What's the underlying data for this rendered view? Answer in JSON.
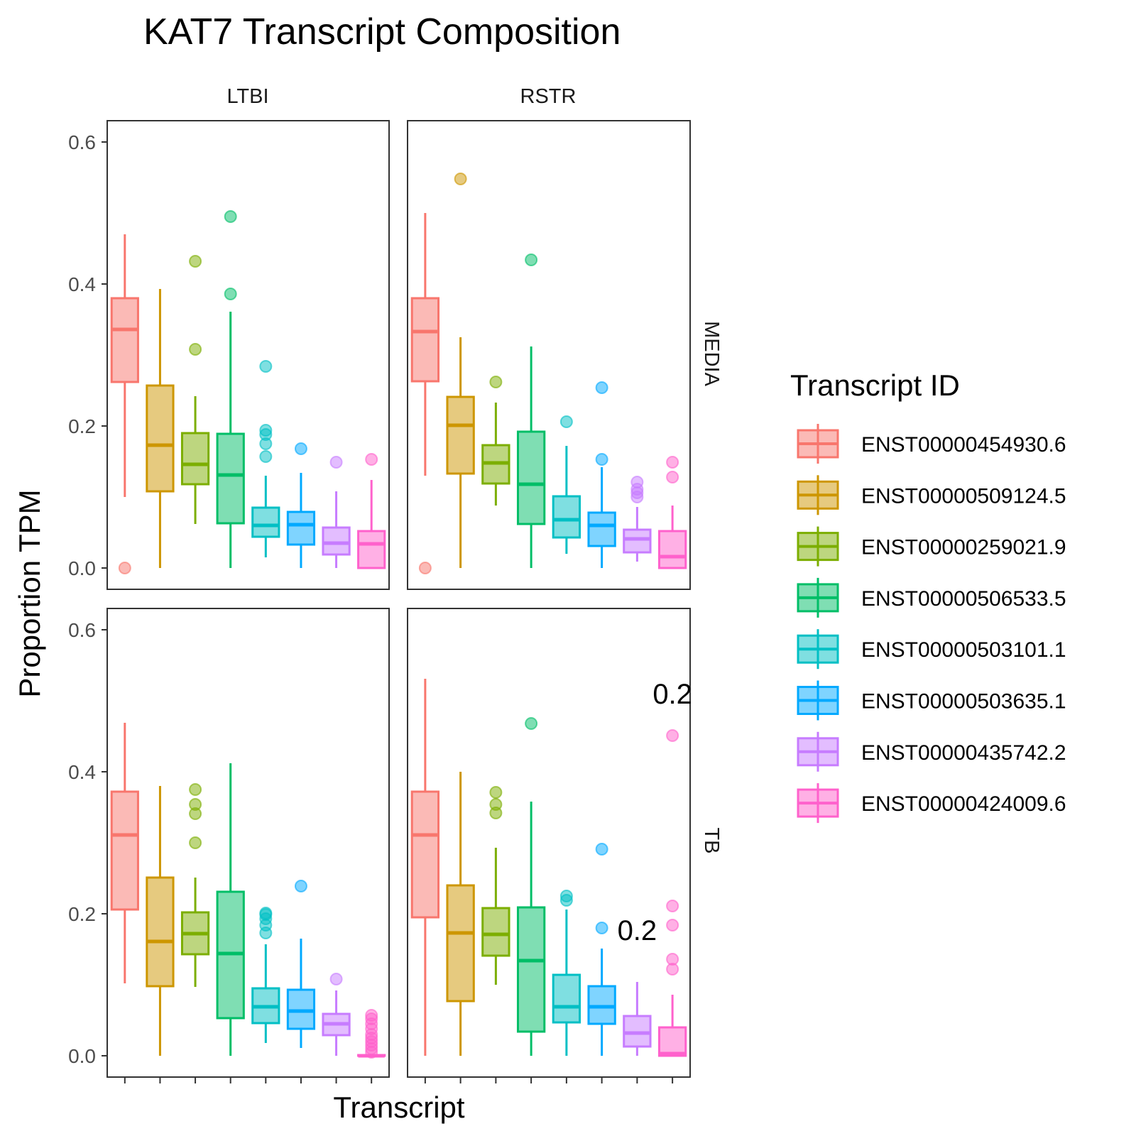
{
  "chart_data": {
    "type": "boxplot",
    "title": "KAT7 Transcript Composition",
    "xlabel": "Transcript",
    "ylabel": "Proportion TPM",
    "ylim": [
      -0.03,
      0.63
    ],
    "yticks": [
      "0.0",
      "0.2",
      "0.4",
      "0.6"
    ],
    "grid": false,
    "legend": {
      "title": "Transcript ID",
      "position": "right"
    },
    "col_facets": [
      "LTBI",
      "RSTR"
    ],
    "row_facets": [
      "MEDIA",
      "TB"
    ],
    "series": [
      {
        "name": "ENST00000454930.6",
        "color": "#F8766D"
      },
      {
        "name": "ENST00000509124.5",
        "color": "#CD9600"
      },
      {
        "name": "ENST00000259021.9",
        "color": "#7CAE00"
      },
      {
        "name": "ENST00000506533.5",
        "color": "#00BE67"
      },
      {
        "name": "ENST00000503101.1",
        "color": "#00BFC4"
      },
      {
        "name": "ENST00000503635.1",
        "color": "#00A9FF"
      },
      {
        "name": "ENST00000435742.2",
        "color": "#C77CFF"
      },
      {
        "name": "ENST00000424009.6",
        "color": "#FF61CC"
      }
    ],
    "panels": [
      {
        "col": "LTBI",
        "row": "MEDIA",
        "boxes": [
          {
            "lw": 0.1,
            "q1": 0.262,
            "med": 0.336,
            "q3": 0.38,
            "uw": 0.47,
            "out": [
              0.0
            ]
          },
          {
            "lw": 0.0,
            "q1": 0.108,
            "med": 0.173,
            "q3": 0.257,
            "uw": 0.393,
            "out": []
          },
          {
            "lw": 0.062,
            "q1": 0.118,
            "med": 0.146,
            "q3": 0.19,
            "uw": 0.242,
            "out": [
              0.308,
              0.432
            ]
          },
          {
            "lw": 0.0,
            "q1": 0.063,
            "med": 0.131,
            "q3": 0.189,
            "uw": 0.361,
            "out": [
              0.386,
              0.495
            ]
          },
          {
            "lw": 0.015,
            "q1": 0.044,
            "med": 0.06,
            "q3": 0.085,
            "uw": 0.13,
            "out": [
              0.157,
              0.175,
              0.188,
              0.194,
              0.284
            ]
          },
          {
            "lw": 0.0,
            "q1": 0.033,
            "med": 0.061,
            "q3": 0.079,
            "uw": 0.134,
            "out": [
              0.168
            ]
          },
          {
            "lw": 0.0,
            "q1": 0.019,
            "med": 0.035,
            "q3": 0.057,
            "uw": 0.108,
            "out": [
              0.149
            ]
          },
          {
            "lw": 0.0,
            "q1": 0.0,
            "med": 0.034,
            "q3": 0.052,
            "uw": 0.124,
            "out": [
              0.153
            ]
          }
        ]
      },
      {
        "col": "RSTR",
        "row": "MEDIA",
        "boxes": [
          {
            "lw": 0.13,
            "q1": 0.263,
            "med": 0.333,
            "q3": 0.38,
            "uw": 0.5,
            "out": [
              0.0
            ]
          },
          {
            "lw": 0.0,
            "q1": 0.133,
            "med": 0.201,
            "q3": 0.241,
            "uw": 0.325,
            "out": [
              0.548
            ]
          },
          {
            "lw": 0.088,
            "q1": 0.119,
            "med": 0.148,
            "q3": 0.173,
            "uw": 0.233,
            "out": [
              0.262
            ]
          },
          {
            "lw": 0.0,
            "q1": 0.062,
            "med": 0.118,
            "q3": 0.192,
            "uw": 0.312,
            "out": [
              0.434
            ]
          },
          {
            "lw": 0.02,
            "q1": 0.043,
            "med": 0.068,
            "q3": 0.101,
            "uw": 0.172,
            "out": [
              0.206
            ]
          },
          {
            "lw": 0.0,
            "q1": 0.031,
            "med": 0.06,
            "q3": 0.078,
            "uw": 0.142,
            "out": [
              0.153,
              0.254
            ]
          },
          {
            "lw": 0.009,
            "q1": 0.022,
            "med": 0.041,
            "q3": 0.054,
            "uw": 0.086,
            "out": [
              0.1,
              0.106,
              0.111,
              0.121
            ]
          },
          {
            "lw": 0.0,
            "q1": 0.0,
            "med": 0.016,
            "q3": 0.052,
            "uw": 0.088,
            "out": [
              0.128,
              0.149
            ]
          }
        ]
      },
      {
        "col": "LTBI",
        "row": "TB",
        "boxes": [
          {
            "lw": 0.102,
            "q1": 0.206,
            "med": 0.311,
            "q3": 0.372,
            "uw": 0.469,
            "out": []
          },
          {
            "lw": 0.0,
            "q1": 0.098,
            "med": 0.161,
            "q3": 0.251,
            "uw": 0.38,
            "out": []
          },
          {
            "lw": 0.097,
            "q1": 0.143,
            "med": 0.172,
            "q3": 0.202,
            "uw": 0.251,
            "out": [
              0.3,
              0.341,
              0.354,
              0.375
            ]
          },
          {
            "lw": 0.0,
            "q1": 0.053,
            "med": 0.144,
            "q3": 0.231,
            "uw": 0.412,
            "out": []
          },
          {
            "lw": 0.018,
            "q1": 0.046,
            "med": 0.069,
            "q3": 0.095,
            "uw": 0.157,
            "out": [
              0.173,
              0.184,
              0.193,
              0.199,
              0.201
            ]
          },
          {
            "lw": 0.011,
            "q1": 0.038,
            "med": 0.063,
            "q3": 0.093,
            "uw": 0.165,
            "out": [
              0.239
            ]
          },
          {
            "lw": 0.0,
            "q1": 0.029,
            "med": 0.045,
            "q3": 0.059,
            "uw": 0.092,
            "out": [
              0.108
            ]
          },
          {
            "lw": 0.0,
            "q1": 0.0,
            "med": 0.0,
            "q3": 0.001,
            "uw": 0.002,
            "out": [
              0.005,
              0.01,
              0.015,
              0.02,
              0.025,
              0.03,
              0.038,
              0.045,
              0.052,
              0.057
            ]
          }
        ]
      },
      {
        "col": "RSTR",
        "row": "TB",
        "boxes": [
          {
            "lw": 0.0,
            "q1": 0.195,
            "med": 0.311,
            "q3": 0.372,
            "uw": 0.531,
            "out": []
          },
          {
            "lw": 0.0,
            "q1": 0.077,
            "med": 0.173,
            "q3": 0.24,
            "uw": 0.4,
            "out": []
          },
          {
            "lw": 0.1,
            "q1": 0.141,
            "med": 0.171,
            "q3": 0.208,
            "uw": 0.293,
            "out": [
              0.342,
              0.354,
              0.371
            ]
          },
          {
            "lw": 0.0,
            "q1": 0.034,
            "med": 0.134,
            "q3": 0.209,
            "uw": 0.358,
            "out": [
              0.468
            ]
          },
          {
            "lw": 0.0,
            "q1": 0.047,
            "med": 0.069,
            "q3": 0.114,
            "uw": 0.206,
            "out": [
              0.219,
              0.225
            ]
          },
          {
            "lw": 0.0,
            "q1": 0.045,
            "med": 0.069,
            "q3": 0.098,
            "uw": 0.151,
            "out": [
              0.18,
              0.291
            ]
          },
          {
            "lw": 0.0,
            "q1": 0.013,
            "med": 0.032,
            "q3": 0.056,
            "uw": 0.104,
            "out": []
          },
          {
            "lw": 0.0,
            "q1": 0.0,
            "med": 0.003,
            "q3": 0.04,
            "uw": 0.086,
            "out": [
              0.122,
              0.136,
              0.184,
              0.211,
              0.451
            ]
          }
        ]
      }
    ],
    "annotations": [
      {
        "panel": 3,
        "x_index": 7.0,
        "y": 0.496,
        "text": "0.2"
      },
      {
        "panel": 3,
        "x_index": 6.0,
        "y": 0.163,
        "text": "0.2"
      }
    ]
  }
}
